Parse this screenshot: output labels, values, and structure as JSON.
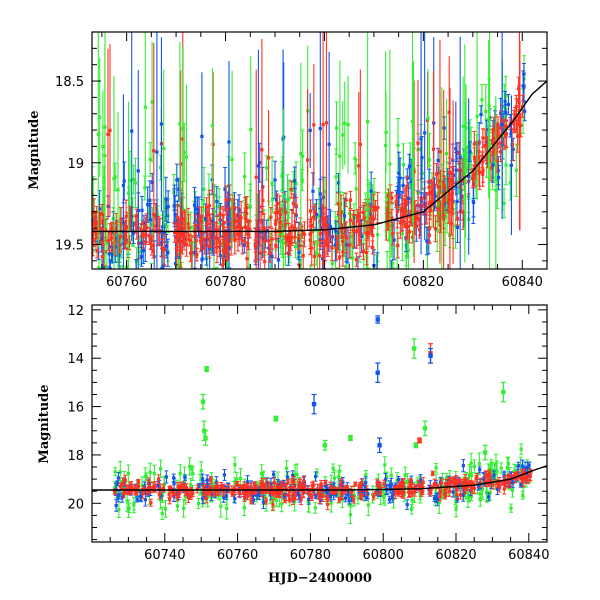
{
  "colors": {
    "green": "#33ee33",
    "blue": "#1155ee",
    "red": "#ff3322",
    "trend": "#000000"
  },
  "chart_data": [
    {
      "type": "scatter",
      "panel": "top",
      "title": "",
      "xlabel": "",
      "ylabel": "Magnitude",
      "xlim": [
        60753,
        60845
      ],
      "ylim": [
        19.65,
        18.2
      ],
      "inverted_y": true,
      "xticks": [
        60760,
        60780,
        60800,
        60820,
        60840
      ],
      "yticks": [
        18.5,
        19,
        19.5
      ],
      "series": [
        {
          "color_key": "red",
          "trend": "flat ~19.4 to 60812, rising to ~18.6 at 60840"
        },
        {
          "color_key": "blue",
          "trend": "same as red with larger scatter"
        },
        {
          "color_key": "green",
          "trend": "largest scatter, many points above 18.5"
        }
      ],
      "model_curve": [
        [
          60753,
          19.42
        ],
        [
          60790,
          19.42
        ],
        [
          60800,
          19.41
        ],
        [
          60810,
          19.38
        ],
        [
          60820,
          19.3
        ],
        [
          60830,
          19.05
        ],
        [
          60838,
          18.75
        ],
        [
          60842,
          18.58
        ],
        [
          60845,
          18.5
        ]
      ]
    },
    {
      "type": "scatter",
      "panel": "bottom",
      "title": "",
      "xlabel": "HJD−2400000",
      "ylabel": "Magnitude",
      "xlim": [
        60720,
        60845
      ],
      "ylim": [
        21.6,
        11.8
      ],
      "inverted_y": true,
      "xticks": [
        60740,
        60760,
        60780,
        60800,
        60820,
        60840
      ],
      "yticks": [
        12,
        14,
        16,
        18,
        20
      ],
      "series": [
        {
          "color_key": "red",
          "trend": "baseline ~19.5 brightening to ~18.8 at 60840"
        },
        {
          "color_key": "blue",
          "trend": "baseline ~19.4 with outliers"
        },
        {
          "color_key": "green",
          "trend": "baseline ~19.6 with largest scatter"
        }
      ],
      "outliers": [
        {
          "color_key": "blue",
          "x": 60798.5,
          "y": 12.4,
          "err": 0.15
        },
        {
          "color_key": "blue",
          "x": 60798.5,
          "y": 14.6,
          "err": 0.4
        },
        {
          "color_key": "blue",
          "x": 60781,
          "y": 15.9,
          "err": 0.4
        },
        {
          "color_key": "blue",
          "x": 60799,
          "y": 17.6,
          "err": 0.3
        },
        {
          "color_key": "red",
          "x": 60813,
          "y": 13.8,
          "err": 0.4
        },
        {
          "color_key": "blue",
          "x": 60813,
          "y": 13.9,
          "err": 0.3
        },
        {
          "color_key": "green",
          "x": 60808.5,
          "y": 13.6,
          "err": 0.4
        },
        {
          "color_key": "green",
          "x": 60751.5,
          "y": 14.45,
          "err": 0.1
        },
        {
          "color_key": "green",
          "x": 60750.5,
          "y": 15.8,
          "err": 0.3
        },
        {
          "color_key": "green",
          "x": 60750.8,
          "y": 17.0,
          "err": 0.4
        },
        {
          "color_key": "green",
          "x": 60751.2,
          "y": 17.3,
          "err": 0.3
        },
        {
          "color_key": "green",
          "x": 60770.5,
          "y": 16.5,
          "err": 0.1
        },
        {
          "color_key": "green",
          "x": 60791,
          "y": 17.3,
          "err": 0.1
        },
        {
          "color_key": "green",
          "x": 60833,
          "y": 15.4,
          "err": 0.4
        },
        {
          "color_key": "green",
          "x": 60811.5,
          "y": 16.9,
          "err": 0.3
        },
        {
          "color_key": "green",
          "x": 60809,
          "y": 17.6,
          "err": 0.1
        },
        {
          "color_key": "red",
          "x": 60810,
          "y": 17.4,
          "err": 0.1
        },
        {
          "color_key": "green",
          "x": 60784,
          "y": 17.6,
          "err": 0.2
        },
        {
          "color_key": "green",
          "x": 60828,
          "y": 17.9,
          "err": 0.3
        }
      ],
      "model_curve": [
        [
          60720,
          19.45
        ],
        [
          60790,
          19.45
        ],
        [
          60810,
          19.4
        ],
        [
          60825,
          19.25
        ],
        [
          60835,
          19.0
        ],
        [
          60842,
          18.6
        ],
        [
          60845,
          18.45
        ]
      ]
    }
  ]
}
